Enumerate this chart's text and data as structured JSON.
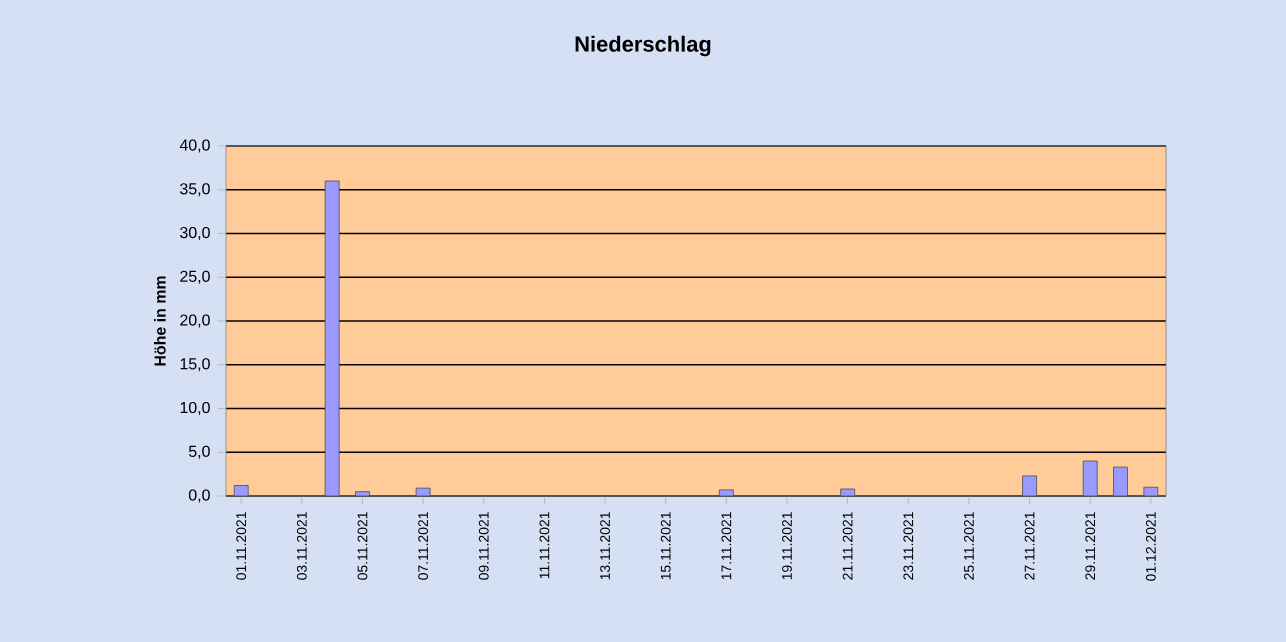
{
  "chart_data": {
    "type": "bar",
    "title": "Niederschlag",
    "ylabel": "Höhe in mm",
    "categories": [
      "01.11.2021",
      null,
      "03.11.2021",
      null,
      "05.11.2021",
      null,
      "07.11.2021",
      null,
      "09.11.2021",
      null,
      "11.11.2021",
      null,
      "13.11.2021",
      null,
      "15.11.2021",
      null,
      "17.11.2021",
      null,
      "19.11.2021",
      null,
      "21.11.2021",
      null,
      "23.11.2021",
      null,
      "25.11.2021",
      null,
      "27.11.2021",
      null,
      "29.11.2021",
      null,
      "01.12.2021"
    ],
    "values": [
      1.2,
      0,
      0,
      36.0,
      0.5,
      0,
      0.9,
      0,
      0,
      0,
      0,
      0,
      0,
      0,
      0,
      0,
      0.7,
      0,
      0,
      0,
      0.8,
      0,
      0,
      0,
      0,
      0,
      2.3,
      0,
      4.0,
      3.3,
      1.0
    ],
    "color": "#9999ff",
    "ylim": [
      0,
      40
    ],
    "yticks": [
      {
        "value": 0,
        "label": "0,0"
      },
      {
        "value": 5,
        "label": "5,0"
      },
      {
        "value": 10,
        "label": "10,0"
      },
      {
        "value": 15,
        "label": "15,0"
      },
      {
        "value": 20,
        "label": "20,0"
      },
      {
        "value": 25,
        "label": "25,0"
      },
      {
        "value": 30,
        "label": "30,0"
      },
      {
        "value": 35,
        "label": "35,0"
      },
      {
        "value": 40,
        "label": "40,0"
      }
    ],
    "grid": "y"
  }
}
